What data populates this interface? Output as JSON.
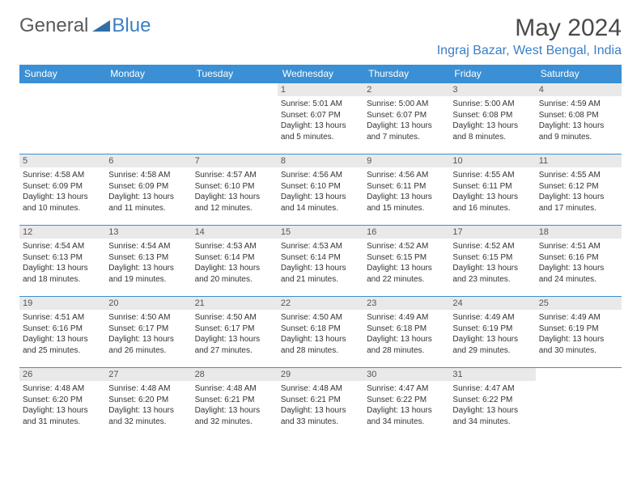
{
  "logo": {
    "gen": "General",
    "blue": "Blue"
  },
  "title": "May 2024",
  "location": "Ingraj Bazar, West Bengal, India",
  "colors": {
    "accent": "#3b8fd4",
    "accent_text": "#3b7fc4",
    "day_bg": "#e9e9e9",
    "text": "#333333",
    "title_color": "#4a4a4a"
  },
  "weekdays": [
    "Sunday",
    "Monday",
    "Tuesday",
    "Wednesday",
    "Thursday",
    "Friday",
    "Saturday"
  ],
  "weeks": [
    [
      null,
      null,
      null,
      {
        "day": "1",
        "sunrise": "Sunrise: 5:01 AM",
        "sunset": "Sunset: 6:07 PM",
        "daylight": "Daylight: 13 hours and 5 minutes."
      },
      {
        "day": "2",
        "sunrise": "Sunrise: 5:00 AM",
        "sunset": "Sunset: 6:07 PM",
        "daylight": "Daylight: 13 hours and 7 minutes."
      },
      {
        "day": "3",
        "sunrise": "Sunrise: 5:00 AM",
        "sunset": "Sunset: 6:08 PM",
        "daylight": "Daylight: 13 hours and 8 minutes."
      },
      {
        "day": "4",
        "sunrise": "Sunrise: 4:59 AM",
        "sunset": "Sunset: 6:08 PM",
        "daylight": "Daylight: 13 hours and 9 minutes."
      }
    ],
    [
      {
        "day": "5",
        "sunrise": "Sunrise: 4:58 AM",
        "sunset": "Sunset: 6:09 PM",
        "daylight": "Daylight: 13 hours and 10 minutes."
      },
      {
        "day": "6",
        "sunrise": "Sunrise: 4:58 AM",
        "sunset": "Sunset: 6:09 PM",
        "daylight": "Daylight: 13 hours and 11 minutes."
      },
      {
        "day": "7",
        "sunrise": "Sunrise: 4:57 AM",
        "sunset": "Sunset: 6:10 PM",
        "daylight": "Daylight: 13 hours and 12 minutes."
      },
      {
        "day": "8",
        "sunrise": "Sunrise: 4:56 AM",
        "sunset": "Sunset: 6:10 PM",
        "daylight": "Daylight: 13 hours and 14 minutes."
      },
      {
        "day": "9",
        "sunrise": "Sunrise: 4:56 AM",
        "sunset": "Sunset: 6:11 PM",
        "daylight": "Daylight: 13 hours and 15 minutes."
      },
      {
        "day": "10",
        "sunrise": "Sunrise: 4:55 AM",
        "sunset": "Sunset: 6:11 PM",
        "daylight": "Daylight: 13 hours and 16 minutes."
      },
      {
        "day": "11",
        "sunrise": "Sunrise: 4:55 AM",
        "sunset": "Sunset: 6:12 PM",
        "daylight": "Daylight: 13 hours and 17 minutes."
      }
    ],
    [
      {
        "day": "12",
        "sunrise": "Sunrise: 4:54 AM",
        "sunset": "Sunset: 6:13 PM",
        "daylight": "Daylight: 13 hours and 18 minutes."
      },
      {
        "day": "13",
        "sunrise": "Sunrise: 4:54 AM",
        "sunset": "Sunset: 6:13 PM",
        "daylight": "Daylight: 13 hours and 19 minutes."
      },
      {
        "day": "14",
        "sunrise": "Sunrise: 4:53 AM",
        "sunset": "Sunset: 6:14 PM",
        "daylight": "Daylight: 13 hours and 20 minutes."
      },
      {
        "day": "15",
        "sunrise": "Sunrise: 4:53 AM",
        "sunset": "Sunset: 6:14 PM",
        "daylight": "Daylight: 13 hours and 21 minutes."
      },
      {
        "day": "16",
        "sunrise": "Sunrise: 4:52 AM",
        "sunset": "Sunset: 6:15 PM",
        "daylight": "Daylight: 13 hours and 22 minutes."
      },
      {
        "day": "17",
        "sunrise": "Sunrise: 4:52 AM",
        "sunset": "Sunset: 6:15 PM",
        "daylight": "Daylight: 13 hours and 23 minutes."
      },
      {
        "day": "18",
        "sunrise": "Sunrise: 4:51 AM",
        "sunset": "Sunset: 6:16 PM",
        "daylight": "Daylight: 13 hours and 24 minutes."
      }
    ],
    [
      {
        "day": "19",
        "sunrise": "Sunrise: 4:51 AM",
        "sunset": "Sunset: 6:16 PM",
        "daylight": "Daylight: 13 hours and 25 minutes."
      },
      {
        "day": "20",
        "sunrise": "Sunrise: 4:50 AM",
        "sunset": "Sunset: 6:17 PM",
        "daylight": "Daylight: 13 hours and 26 minutes."
      },
      {
        "day": "21",
        "sunrise": "Sunrise: 4:50 AM",
        "sunset": "Sunset: 6:17 PM",
        "daylight": "Daylight: 13 hours and 27 minutes."
      },
      {
        "day": "22",
        "sunrise": "Sunrise: 4:50 AM",
        "sunset": "Sunset: 6:18 PM",
        "daylight": "Daylight: 13 hours and 28 minutes."
      },
      {
        "day": "23",
        "sunrise": "Sunrise: 4:49 AM",
        "sunset": "Sunset: 6:18 PM",
        "daylight": "Daylight: 13 hours and 28 minutes."
      },
      {
        "day": "24",
        "sunrise": "Sunrise: 4:49 AM",
        "sunset": "Sunset: 6:19 PM",
        "daylight": "Daylight: 13 hours and 29 minutes."
      },
      {
        "day": "25",
        "sunrise": "Sunrise: 4:49 AM",
        "sunset": "Sunset: 6:19 PM",
        "daylight": "Daylight: 13 hours and 30 minutes."
      }
    ],
    [
      {
        "day": "26",
        "sunrise": "Sunrise: 4:48 AM",
        "sunset": "Sunset: 6:20 PM",
        "daylight": "Daylight: 13 hours and 31 minutes."
      },
      {
        "day": "27",
        "sunrise": "Sunrise: 4:48 AM",
        "sunset": "Sunset: 6:20 PM",
        "daylight": "Daylight: 13 hours and 32 minutes."
      },
      {
        "day": "28",
        "sunrise": "Sunrise: 4:48 AM",
        "sunset": "Sunset: 6:21 PM",
        "daylight": "Daylight: 13 hours and 32 minutes."
      },
      {
        "day": "29",
        "sunrise": "Sunrise: 4:48 AM",
        "sunset": "Sunset: 6:21 PM",
        "daylight": "Daylight: 13 hours and 33 minutes."
      },
      {
        "day": "30",
        "sunrise": "Sunrise: 4:47 AM",
        "sunset": "Sunset: 6:22 PM",
        "daylight": "Daylight: 13 hours and 34 minutes."
      },
      {
        "day": "31",
        "sunrise": "Sunrise: 4:47 AM",
        "sunset": "Sunset: 6:22 PM",
        "daylight": "Daylight: 13 hours and 34 minutes."
      },
      null
    ]
  ]
}
